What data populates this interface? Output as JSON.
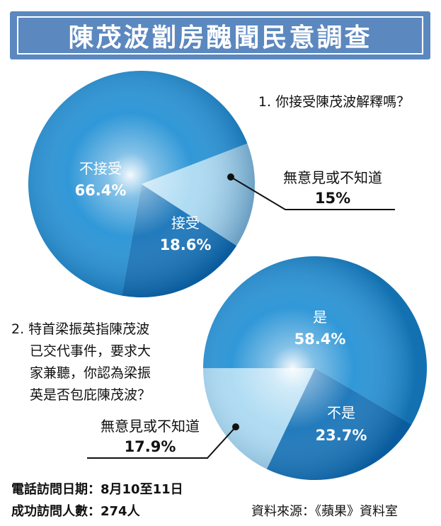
{
  "title": "陳茂波劏房醜聞民意調查",
  "colors": {
    "banner": "#5b88bf",
    "pie_main": "#1f8fd4",
    "pie_dark": "#0f6fb6",
    "pie_light": "#a9d9f2"
  },
  "chart_data": [
    {
      "type": "pie",
      "title": "1. 你接受陳茂波解釋嗎？",
      "slices": [
        {
          "label": "不接受",
          "value": 66.4,
          "display": "66.4%"
        },
        {
          "label": "接受",
          "value": 18.6,
          "display": "18.6%"
        },
        {
          "label": "無意見或不知道",
          "value": 15.0,
          "display": "15%"
        }
      ]
    },
    {
      "type": "pie",
      "title_lines": [
        "2. 特首梁振英指陳茂波",
        "已交代事件，要求大",
        "家兼聽，你認為梁振",
        "英是否包庇陳茂波？"
      ],
      "slices": [
        {
          "label": "是",
          "value": 58.4,
          "display": "58.4%"
        },
        {
          "label": "不是",
          "value": 23.7,
          "display": "23.7%"
        },
        {
          "label": "無意見或不知道",
          "value": 17.9,
          "display": "17.9%"
        }
      ]
    }
  ],
  "footer": {
    "line1": "電話訪問日期：8月10至11日",
    "line2": "成功訪問人數：274人",
    "source": "資料來源：《蘋果》資料室"
  }
}
